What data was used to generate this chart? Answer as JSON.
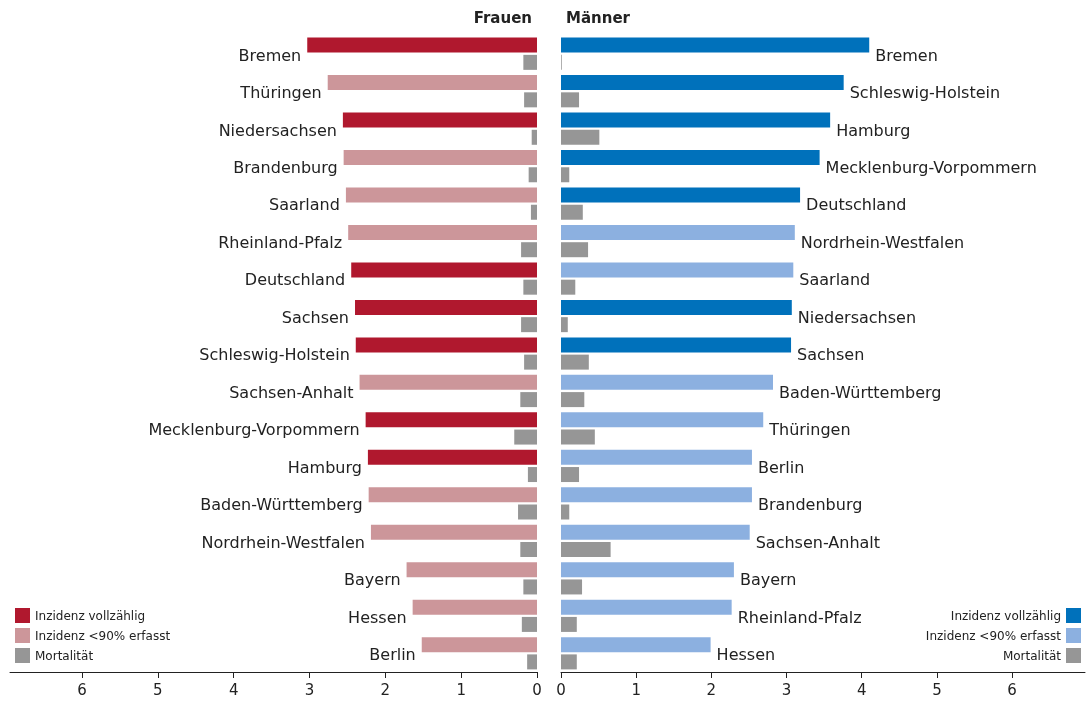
{
  "chart_data": [
    {
      "type": "bar",
      "orientation": "horizontal",
      "title": "Frauen",
      "categories": [
        "Bremen",
        "Thüringen",
        "Niedersachsen",
        "Brandenburg",
        "Saarland",
        "Rheinland-Pfalz",
        "Deutschland",
        "Sachsen",
        "Schleswig-Holstein",
        "Sachsen-Anhalt",
        "Mecklenburg-Vorpommern",
        "Hamburg",
        "Baden-Württemberg",
        "Nordrhein-Westfalen",
        "Bayern",
        "Hessen",
        "Berlin"
      ],
      "series": [
        {
          "name": "Inzidenz vollzählig",
          "color": "#b0182e",
          "values": [
            3.03,
            null,
            2.56,
            null,
            null,
            null,
            2.45,
            2.4,
            2.39,
            null,
            2.26,
            2.23,
            null,
            null,
            null,
            null,
            null
          ]
        },
        {
          "name": "Inzidenz <90% erfasst",
          "color": "#cc969a",
          "values": [
            null,
            2.76,
            null,
            2.55,
            2.52,
            2.49,
            null,
            null,
            null,
            2.34,
            null,
            null,
            2.22,
            2.19,
            1.72,
            1.64,
            1.52
          ]
        },
        {
          "name": "Mortalität",
          "color": "#969696",
          "values": [
            0.18,
            0.17,
            0.07,
            0.11,
            0.08,
            0.21,
            0.18,
            0.21,
            0.17,
            0.22,
            0.3,
            0.12,
            0.25,
            0.22,
            0.18,
            0.2,
            0.13
          ]
        }
      ],
      "xlim": [
        6.95,
        0
      ],
      "xticks": [
        6,
        5,
        4,
        3,
        2,
        1,
        0
      ],
      "grid": false,
      "legend": "bottom left"
    },
    {
      "type": "bar",
      "orientation": "horizontal",
      "title": "Männer",
      "categories": [
        "Bremen",
        "Schleswig-Holstein",
        "Hamburg",
        "Mecklenburg-Vorpommern",
        "Deutschland",
        "Nordrhein-Westfalen",
        "Saarland",
        "Niedersachsen",
        "Sachsen",
        "Baden-Württemberg",
        "Thüringen",
        "Berlin",
        "Brandenburg",
        "Sachsen-Anhalt",
        "Bayern",
        "Rheinland-Pfalz",
        "Hessen"
      ],
      "series": [
        {
          "name": "Inzidenz vollzählig",
          "color": "#0071bb",
          "values": [
            4.1,
            3.76,
            3.58,
            3.44,
            3.18,
            null,
            null,
            3.07,
            3.06,
            null,
            null,
            null,
            null,
            null,
            null,
            null,
            null
          ]
        },
        {
          "name": "Inzidenz <90% erfasst",
          "color": "#8cb0e0",
          "values": [
            null,
            null,
            null,
            null,
            null,
            3.11,
            3.09,
            null,
            null,
            2.82,
            2.69,
            2.54,
            2.54,
            2.51,
            2.3,
            2.27,
            1.99
          ]
        },
        {
          "name": "Mortalität",
          "color": "#969696",
          "values": [
            0.01,
            0.24,
            0.51,
            0.11,
            0.29,
            0.36,
            0.19,
            0.09,
            0.37,
            0.31,
            0.45,
            0.24,
            0.11,
            0.66,
            0.28,
            0.21,
            0.21
          ]
        }
      ],
      "xlim": [
        0,
        6.97
      ],
      "xticks": [
        0,
        1,
        2,
        3,
        4,
        5,
        6
      ],
      "grid": false,
      "legend": "bottom right"
    }
  ]
}
